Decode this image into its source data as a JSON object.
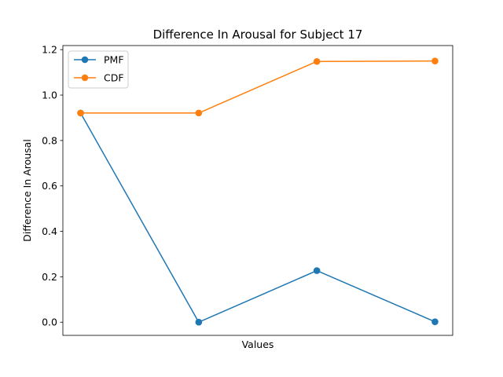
{
  "chart_data": {
    "type": "line",
    "title": "Difference In Arousal for Subject 17",
    "xlabel": "Values",
    "ylabel": "Difference In Arousal",
    "x": [
      0,
      1,
      2,
      3
    ],
    "xlim": [
      -0.15,
      3.15
    ],
    "ylim": [
      -0.058,
      1.218
    ],
    "yticks": [
      0.0,
      0.2,
      0.4,
      0.6,
      0.8,
      1.0,
      1.2
    ],
    "ytick_labels": [
      "0.0",
      "0.2",
      "0.4",
      "0.6",
      "0.8",
      "1.0",
      "1.2"
    ],
    "grid": false,
    "legend_position": "upper-left",
    "series": [
      {
        "name": "PMF",
        "color": "#1f77b4",
        "marker": "circle",
        "values": [
          0.921,
          0.0,
          0.227,
          0.002
        ]
      },
      {
        "name": "CDF",
        "color": "#ff7f0e",
        "marker": "circle",
        "values": [
          0.921,
          0.921,
          1.148,
          1.15
        ]
      }
    ]
  }
}
